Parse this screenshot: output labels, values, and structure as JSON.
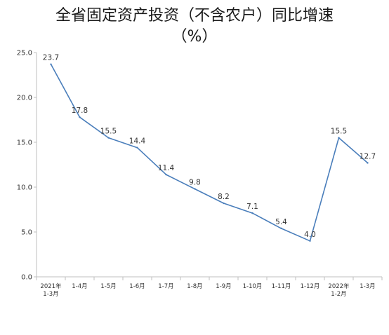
{
  "chart_data": {
    "type": "line",
    "title": "全省固定资产投资（不含农户）同比增速",
    "subtitle": "（%）",
    "categories": [
      [
        "2021年",
        "1-3月"
      ],
      [
        "1-4月"
      ],
      [
        "1-5月"
      ],
      [
        "1-6月"
      ],
      [
        "1-7月"
      ],
      [
        "1-8月"
      ],
      [
        "1-9月"
      ],
      [
        "1-10月"
      ],
      [
        "1-11月"
      ],
      [
        "1-12月"
      ],
      [
        "2022年",
        "1-2月"
      ],
      [
        "1-3月"
      ]
    ],
    "values": [
      23.7,
      17.8,
      15.5,
      14.4,
      11.4,
      9.8,
      8.2,
      7.1,
      5.4,
      4.0,
      15.5,
      12.7
    ],
    "value_labels": [
      "23.7",
      "17.8",
      "15.5",
      "14.4",
      "11.4",
      "9.8",
      "8.2",
      "7.1",
      "5.4",
      "4.0",
      "15.5",
      "12.7"
    ],
    "y_ticks": [
      "0.0",
      "5.0",
      "10.0",
      "15.0",
      "20.0",
      "25.0"
    ],
    "ylim": [
      0,
      25
    ],
    "xlabel": "",
    "ylabel": "",
    "grid": false,
    "line_color": "#4a7ebb"
  }
}
